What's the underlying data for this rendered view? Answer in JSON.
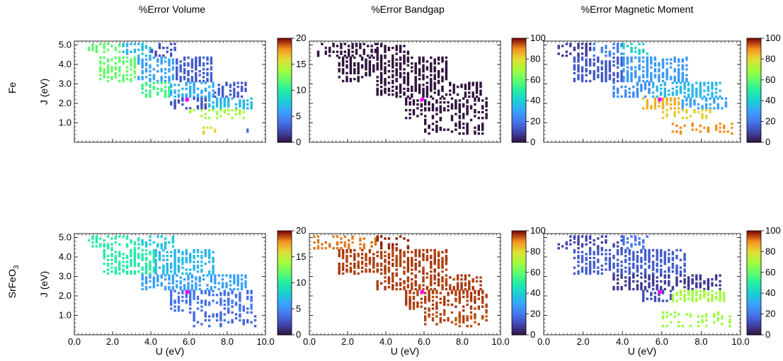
{
  "figure": {
    "column_titles": [
      "%Error Volume",
      "%Error Bandgap",
      "%Error Magnetic Moment"
    ],
    "row_labels": [
      {
        "text": "Fe",
        "subscript": ""
      },
      {
        "text": "SrFeO",
        "subscript": "3"
      }
    ],
    "xlabel": "U (eV)",
    "ylabel": "J (eV)",
    "x_ticks": [
      "0.0",
      "2.0",
      "4.0",
      "6.0",
      "8.0",
      "10.0"
    ],
    "y_ticks": [
      "1.0",
      "2.0",
      "3.0",
      "4.0",
      "5.0"
    ],
    "colormap": "turbo",
    "marker_color": "#ff00ff"
  },
  "chart_data": [
    {
      "type": "heatmap",
      "material": "Fe",
      "title": "%Error Volume",
      "xlim": [
        0,
        10
      ],
      "ylim": [
        0,
        5.2
      ],
      "colorbar_range": [
        0,
        20
      ],
      "colorbar_ticks": [
        "0",
        "5",
        "10",
        "15",
        "20"
      ],
      "marker": {
        "u": 5.9,
        "j": 2.2
      },
      "regions": [
        {
          "u": [
            0.7,
            2.5
          ],
          "j": [
            4.6,
            5.1
          ],
          "value": 12.0
        },
        {
          "u": [
            2.5,
            4.0
          ],
          "j": [
            4.4,
            5.1
          ],
          "value": 7.0
        },
        {
          "u": [
            4.0,
            5.3
          ],
          "j": [
            4.4,
            5.1
          ],
          "value": 2.5
        },
        {
          "u": [
            1.3,
            3.3
          ],
          "j": [
            3.1,
            4.4
          ],
          "value": 12.0
        },
        {
          "u": [
            3.3,
            5.3
          ],
          "j": [
            3.1,
            4.4
          ],
          "value": 6.0
        },
        {
          "u": [
            5.3,
            7.3
          ],
          "j": [
            3.1,
            4.4
          ],
          "value": 3.0
        },
        {
          "u": [
            3.5,
            5.0
          ],
          "j": [
            2.3,
            3.1
          ],
          "value": 11.0
        },
        {
          "u": [
            5.0,
            7.3
          ],
          "j": [
            2.3,
            3.1
          ],
          "value": 6.5
        },
        {
          "u": [
            7.3,
            9.0
          ],
          "j": [
            2.3,
            3.1
          ],
          "value": 3.0
        },
        {
          "u": [
            5.0,
            7.0
          ],
          "j": [
            1.7,
            2.3
          ],
          "value": 2.5
        },
        {
          "u": [
            7.0,
            9.3
          ],
          "j": [
            1.7,
            2.3
          ],
          "value": 7.0
        },
        {
          "u": [
            6.0,
            9.0
          ],
          "j": [
            1.2,
            1.7
          ],
          "value": 14.0
        },
        {
          "u": [
            6.5,
            7.5
          ],
          "j": [
            0.4,
            0.8
          ],
          "value": 16.0
        },
        {
          "u": [
            9.0,
            9.6
          ],
          "j": [
            0.5,
            0.8
          ],
          "value": 4.0
        }
      ]
    },
    {
      "type": "heatmap",
      "material": "Fe",
      "title": "%Error Bandgap",
      "xlim": [
        0,
        10
      ],
      "ylim": [
        0,
        5.2
      ],
      "colorbar_range": [
        0,
        100
      ],
      "colorbar_ticks": [
        "0",
        "20",
        "40",
        "60",
        "80",
        "100"
      ],
      "marker": {
        "u": 5.9,
        "j": 2.2
      },
      "regions": [
        {
          "u": [
            0.2,
            3.5
          ],
          "j": [
            4.4,
            5.1
          ],
          "value": 0
        },
        {
          "u": [
            3.5,
            5.3
          ],
          "j": [
            4.4,
            5.1
          ],
          "value": 0
        },
        {
          "u": [
            1.5,
            7.3
          ],
          "j": [
            3.1,
            4.4
          ],
          "value": 0
        },
        {
          "u": [
            3.5,
            9.0
          ],
          "j": [
            2.3,
            3.1
          ],
          "value": 0
        },
        {
          "u": [
            5.0,
            9.3
          ],
          "j": [
            1.2,
            2.3
          ],
          "value": 0
        },
        {
          "u": [
            6.0,
            9.3
          ],
          "j": [
            0.4,
            1.2
          ],
          "value": 0
        }
      ]
    },
    {
      "type": "heatmap",
      "material": "Fe",
      "title": "%Error Magnetic Moment",
      "xlim": [
        0,
        10
      ],
      "ylim": [
        0,
        5.2
      ],
      "colorbar_range": [
        0,
        100
      ],
      "colorbar_ticks": [
        "0",
        "20",
        "40",
        "60",
        "80",
        "100"
      ],
      "marker": {
        "u": 5.9,
        "j": 2.2
      },
      "regions": [
        {
          "u": [
            0.7,
            2.5
          ],
          "j": [
            4.4,
            5.1
          ],
          "value": 8
        },
        {
          "u": [
            2.5,
            4.0
          ],
          "j": [
            4.4,
            5.1
          ],
          "value": 22
        },
        {
          "u": [
            4.0,
            5.3
          ],
          "j": [
            4.4,
            5.1
          ],
          "value": 42
        },
        {
          "u": [
            1.5,
            4.0
          ],
          "j": [
            3.1,
            4.4
          ],
          "value": 14
        },
        {
          "u": [
            4.0,
            7.3
          ],
          "j": [
            3.1,
            4.4
          ],
          "value": 28
        },
        {
          "u": [
            3.5,
            5.5
          ],
          "j": [
            2.3,
            3.1
          ],
          "value": 25
        },
        {
          "u": [
            5.5,
            9.0
          ],
          "j": [
            2.3,
            3.1
          ],
          "value": 35
        },
        {
          "u": [
            5.0,
            7.0
          ],
          "j": [
            1.7,
            2.3
          ],
          "value": 86
        },
        {
          "u": [
            7.0,
            9.3
          ],
          "j": [
            1.7,
            2.3
          ],
          "value": 30
        },
        {
          "u": [
            6.0,
            8.5
          ],
          "j": [
            1.2,
            1.7
          ],
          "value": 82
        },
        {
          "u": [
            6.5,
            9.6
          ],
          "j": [
            0.4,
            1.0
          ],
          "value": 90
        }
      ]
    },
    {
      "type": "heatmap",
      "material": "SrFeO3",
      "title": "%Error Volume",
      "xlim": [
        0,
        10
      ],
      "ylim": [
        0,
        5.2
      ],
      "colorbar_range": [
        0,
        20
      ],
      "colorbar_ticks": [
        "0",
        "5",
        "10",
        "15",
        "20"
      ],
      "marker": {
        "u": 5.9,
        "j": 2.2
      },
      "regions": [
        {
          "u": [
            0.7,
            3.5
          ],
          "j": [
            4.4,
            5.1
          ],
          "value": 10
        },
        {
          "u": [
            3.5,
            5.3
          ],
          "j": [
            4.4,
            5.1
          ],
          "value": 7.5
        },
        {
          "u": [
            1.5,
            4.2
          ],
          "j": [
            3.1,
            4.4
          ],
          "value": 10
        },
        {
          "u": [
            4.2,
            7.3
          ],
          "j": [
            3.1,
            4.4
          ],
          "value": 7
        },
        {
          "u": [
            3.5,
            9.0
          ],
          "j": [
            2.3,
            3.1
          ],
          "value": 6
        },
        {
          "u": [
            5.0,
            9.3
          ],
          "j": [
            1.2,
            2.3
          ],
          "value": 4
        },
        {
          "u": [
            6.0,
            9.6
          ],
          "j": [
            0.4,
            1.2
          ],
          "value": 3.5
        }
      ]
    },
    {
      "type": "heatmap",
      "material": "SrFeO3",
      "title": "%Error Bandgap",
      "xlim": [
        0,
        10
      ],
      "ylim": [
        0,
        5.2
      ],
      "colorbar_range": [
        0,
        100
      ],
      "colorbar_ticks": [
        "0",
        "20",
        "40",
        "60",
        "80",
        "100"
      ],
      "marker": {
        "u": 5.9,
        "j": 2.2
      },
      "regions": [
        {
          "u": [
            0.2,
            3.5
          ],
          "j": [
            4.4,
            5.1
          ],
          "value": 92
        },
        {
          "u": [
            3.5,
            5.3
          ],
          "j": [
            4.4,
            5.1
          ],
          "value": 98
        },
        {
          "u": [
            1.5,
            7.3
          ],
          "j": [
            3.1,
            4.4
          ],
          "value": 96
        },
        {
          "u": [
            3.5,
            9.0
          ],
          "j": [
            2.3,
            3.1
          ],
          "value": 96
        },
        {
          "u": [
            5.0,
            9.3
          ],
          "j": [
            1.2,
            2.3
          ],
          "value": 96
        },
        {
          "u": [
            6.0,
            9.3
          ],
          "j": [
            0.4,
            1.2
          ],
          "value": 95
        }
      ]
    },
    {
      "type": "heatmap",
      "material": "SrFeO3",
      "title": "%Error Magnetic Moment",
      "xlim": [
        0,
        10
      ],
      "ylim": [
        0,
        5.2
      ],
      "colorbar_range": [
        0,
        100
      ],
      "colorbar_ticks": [
        "0",
        "20",
        "40",
        "60",
        "80",
        "100"
      ],
      "marker": {
        "u": 5.9,
        "j": 2.2
      },
      "regions": [
        {
          "u": [
            0.7,
            4.0
          ],
          "j": [
            4.4,
            5.1
          ],
          "value": 10
        },
        {
          "u": [
            4.0,
            5.3
          ],
          "j": [
            4.4,
            5.1
          ],
          "value": 20
        },
        {
          "u": [
            1.5,
            7.3
          ],
          "j": [
            3.1,
            4.4
          ],
          "value": 15
        },
        {
          "u": [
            3.5,
            9.0
          ],
          "j": [
            2.3,
            3.1
          ],
          "value": 8
        },
        {
          "u": [
            5.0,
            6.5
          ],
          "j": [
            1.7,
            2.3
          ],
          "value": 12
        },
        {
          "u": [
            6.5,
            9.3
          ],
          "j": [
            1.7,
            2.3
          ],
          "value": 70
        },
        {
          "u": [
            6.0,
            9.6
          ],
          "j": [
            0.4,
            1.2
          ],
          "value": 68
        }
      ]
    }
  ]
}
